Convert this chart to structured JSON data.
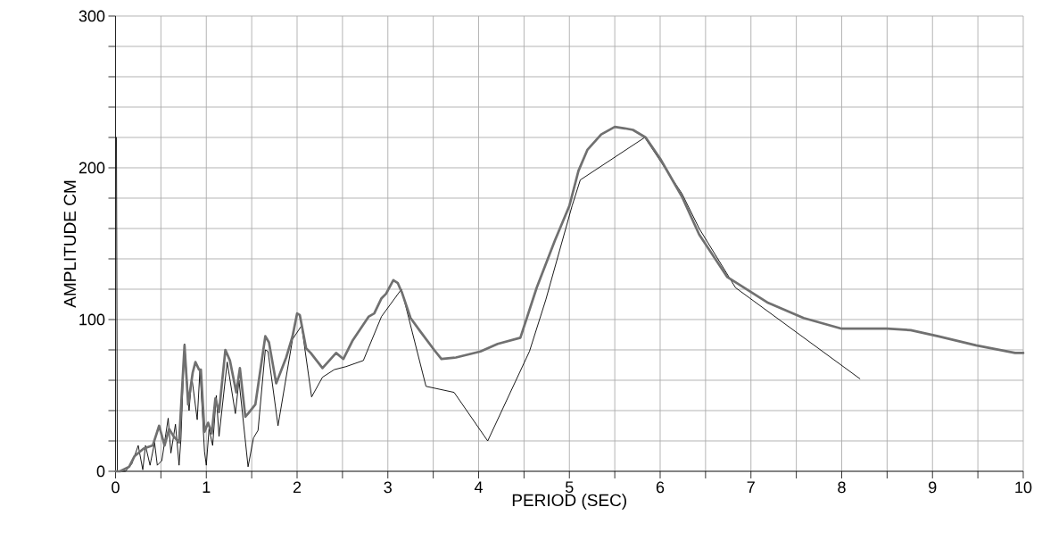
{
  "chart_data": {
    "type": "line",
    "xlabel": "PERIOD  (SEC)",
    "ylabel": "AMPLITUDE  CM",
    "xlim": [
      0,
      10
    ],
    "ylim": [
      0,
      300
    ],
    "xticks": [
      0,
      {
        "value": 0.5,
        "label": null
      },
      1,
      {
        "value": 1.5,
        "label": null
      },
      2,
      {
        "value": 2.5,
        "label": null
      },
      3,
      {
        "value": 3.5,
        "label": null
      },
      4,
      {
        "value": 4.5,
        "label": null
      },
      5,
      {
        "value": 5.5,
        "label": null
      },
      6,
      {
        "value": 6.5,
        "label": null
      },
      7,
      {
        "value": 7.5,
        "label": null
      },
      8,
      {
        "value": 8.5,
        "label": null
      },
      9,
      {
        "value": 9.5,
        "label": null
      },
      10
    ],
    "yticks": [
      0,
      {
        "value": 20,
        "label": null
      },
      {
        "value": 40,
        "label": null
      },
      {
        "value": 60,
        "label": null
      },
      {
        "value": 80,
        "label": null
      },
      100,
      {
        "value": 120,
        "label": null
      },
      {
        "value": 140,
        "label": null
      },
      {
        "value": 160,
        "label": null
      },
      {
        "value": 180,
        "label": null
      },
      200,
      {
        "value": 220,
        "label": null
      },
      {
        "value": 240,
        "label": null
      },
      {
        "value": 260,
        "label": null
      },
      {
        "value": 280,
        "label": null
      },
      300
    ],
    "grid": true,
    "line_style": "solid",
    "series": [
      {
        "color": "#000000",
        "x": [
          0.01,
          0.02,
          0.11,
          0.18,
          0.25,
          0.3,
          0.33,
          0.38,
          0.43,
          0.46,
          0.51,
          0.58,
          0.61,
          0.66,
          0.7,
          0.72,
          0.76,
          0.81,
          0.84,
          0.9,
          0.93,
          0.98,
          1.0,
          1.03,
          1.07,
          1.11,
          1.14,
          1.23,
          1.32,
          1.36,
          1.46,
          1.52,
          1.57,
          1.65,
          1.68,
          1.79,
          1.95,
          2.05,
          2.16,
          2.28,
          2.41,
          2.54,
          2.73,
          2.93,
          3.15,
          3.23,
          3.42,
          3.73,
          4.1,
          4.56,
          4.74,
          5.03,
          5.12,
          5.83,
          6.24,
          6.43,
          6.83,
          8.2
        ],
        "values": [
          220,
          0,
          0,
          5,
          17,
          1,
          17,
          4,
          19,
          4,
          7,
          35,
          12,
          31,
          4,
          21,
          84,
          40,
          62,
          34,
          67,
          13,
          4,
          28,
          17,
          50,
          23,
          72,
          38,
          60,
          3,
          22,
          27,
          80,
          79,
          30,
          87,
          96,
          49,
          62,
          67,
          69,
          73,
          102,
          120,
          101,
          56,
          52,
          20,
          79,
          113,
          175,
          192,
          220,
          183,
          160,
          121,
          61
        ]
      },
      {
        "color": "#707070",
        "x": [
          0,
          0.05,
          0.15,
          0.21,
          0.31,
          0.41,
          0.48,
          0.54,
          0.59,
          0.64,
          0.7,
          0.76,
          0.8,
          0.85,
          0.88,
          0.92,
          0.94,
          0.98,
          1.02,
          1.06,
          1.1,
          1.14,
          1.21,
          1.26,
          1.33,
          1.37,
          1.43,
          1.46,
          1.54,
          1.65,
          1.69,
          1.77,
          1.88,
          1.95,
          2.0,
          2.03,
          2.1,
          2.15,
          2.28,
          2.34,
          2.43,
          2.51,
          2.61,
          2.79,
          2.85,
          2.93,
          2.98,
          3.06,
          3.11,
          3.16,
          3.25,
          3.36,
          3.51,
          3.59,
          3.75,
          4.02,
          4.21,
          4.46,
          4.64,
          4.84,
          5.0,
          5.1,
          5.2,
          5.35,
          5.5,
          5.61,
          5.7,
          5.84,
          6.0,
          6.24,
          6.43,
          6.74,
          7.19,
          7.58,
          8.0,
          8.5,
          8.76,
          9.06,
          9.48,
          9.91,
          10
        ],
        "values": [
          0,
          0,
          3,
          10,
          15,
          17,
          30,
          17,
          28,
          23,
          19,
          83,
          44,
          65,
          72,
          67,
          67,
          26,
          32,
          25,
          48,
          39,
          80,
          73,
          52,
          68,
          36,
          38,
          44,
          89,
          85,
          58,
          75,
          89,
          104,
          103,
          81,
          78,
          68,
          72,
          78,
          74,
          86,
          102,
          104,
          114,
          117,
          126,
          124,
          117,
          101,
          92,
          80,
          74,
          75,
          79,
          84,
          88,
          121,
          152,
          175,
          198,
          212,
          222,
          227,
          226,
          225,
          220,
          206,
          181,
          156,
          128,
          111,
          101,
          94,
          94,
          93,
          89,
          83,
          78,
          78
        ]
      }
    ]
  }
}
